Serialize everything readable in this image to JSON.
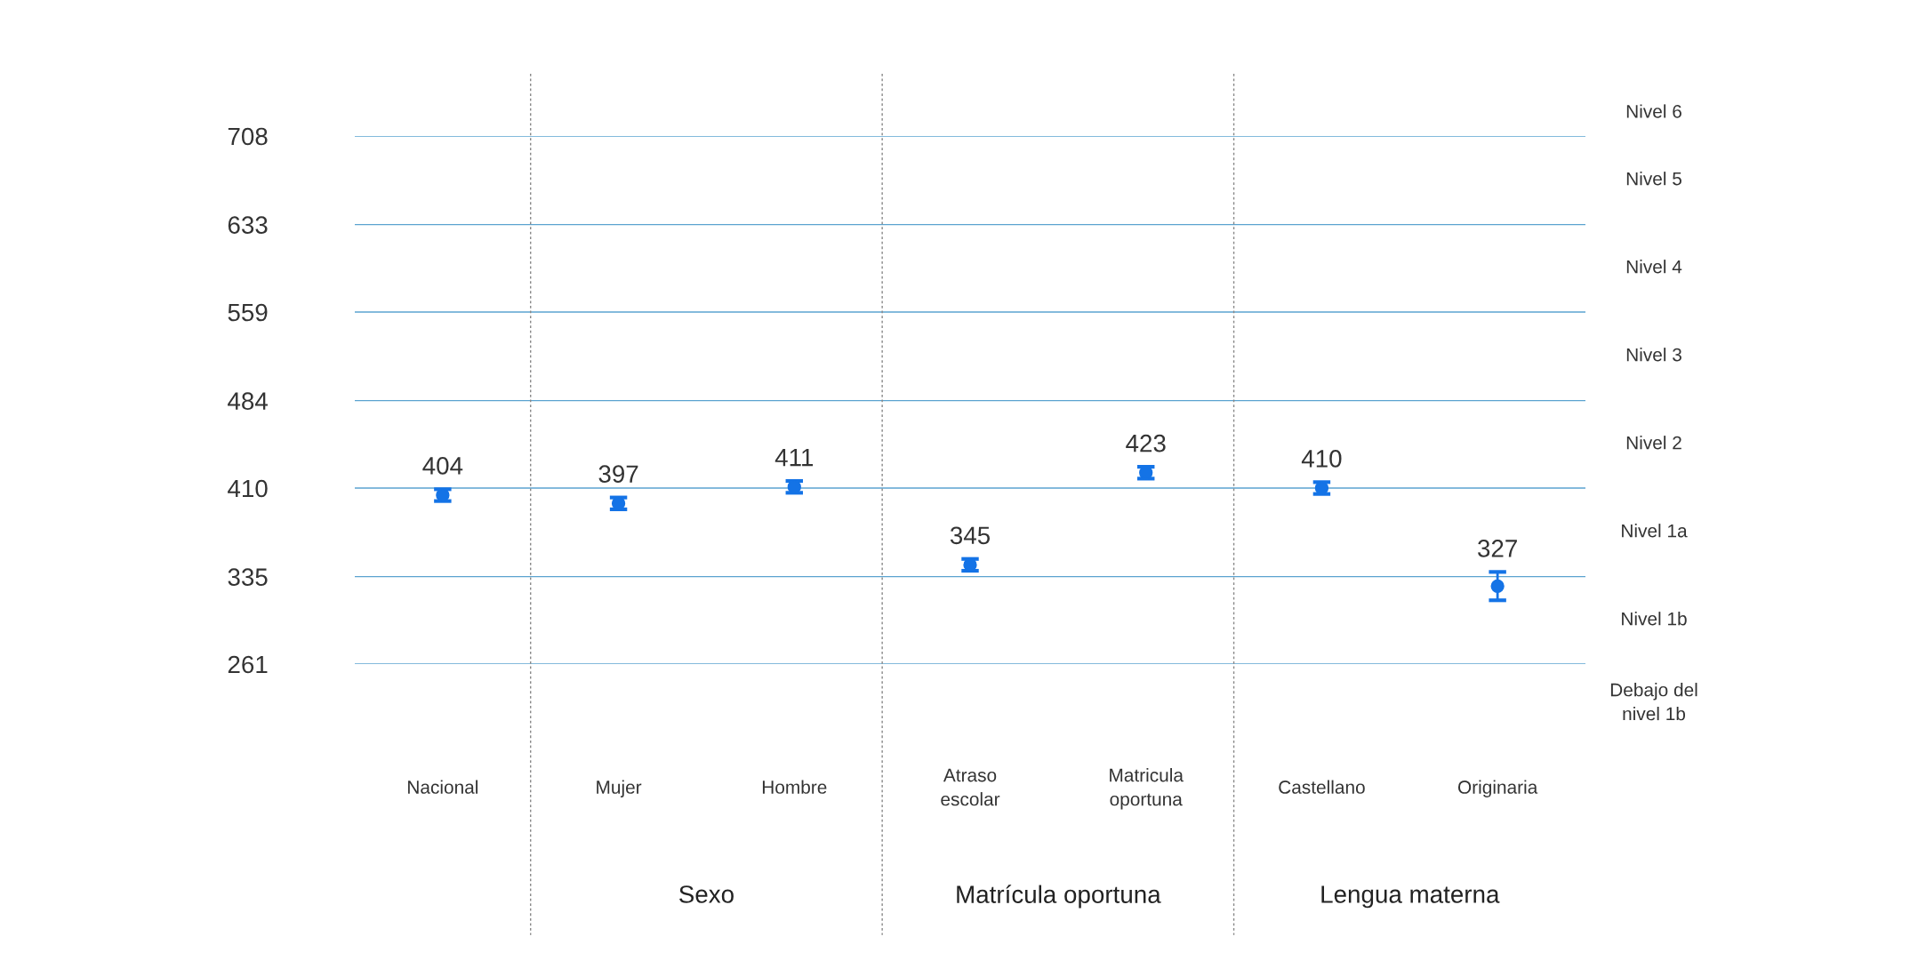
{
  "chart_data": {
    "type": "scatter",
    "categories": [
      "Nacional",
      "Mujer",
      "Hombre",
      "Atraso\nescolar",
      "Matricula\noportuna",
      "Castellano",
      "Originaria"
    ],
    "series": [
      {
        "color": "#1473e6",
        "values": [
          404,
          397,
          411,
          345,
          423,
          410,
          327
        ],
        "errors": [
          5,
          5,
          5,
          5,
          5,
          5,
          12
        ]
      }
    ],
    "ylim": [
      261,
      708
    ],
    "yticks": [
      261,
      335,
      410,
      484,
      559,
      633,
      708
    ],
    "grid": "y",
    "marker": "circle",
    "data_labels": true,
    "annotations": [
      "Debajo del\nnivel 1b",
      "Nivel 1b",
      "Nivel 1a",
      "Nivel 2",
      "Nivel 3",
      "Nivel 4",
      "Nivel 5",
      "Nivel 6",
      "Sexo",
      "Matrícula oportuna",
      "Lengua materna"
    ]
  }
}
